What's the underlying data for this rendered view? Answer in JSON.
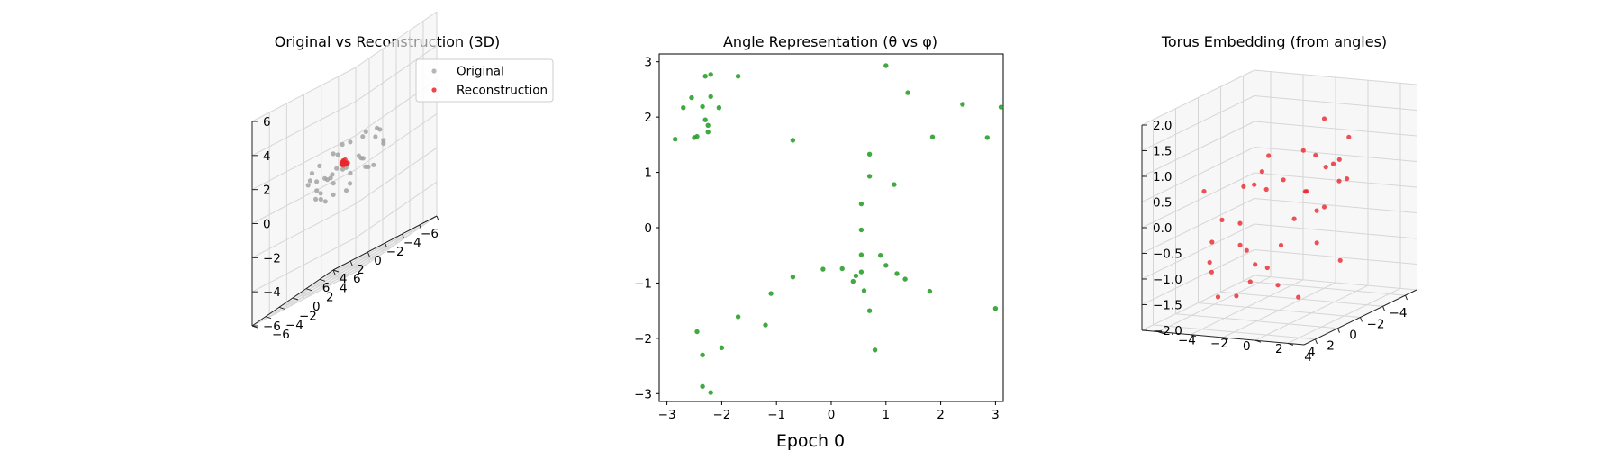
{
  "figure": {
    "suptitle": "Epoch 0"
  },
  "chart_data": [
    {
      "type": "scatter",
      "projection": "3d",
      "title": "Original vs Reconstruction (3D)",
      "xlim": [
        -6,
        6
      ],
      "ylim": [
        -6,
        6
      ],
      "zlim": [
        -6,
        6
      ],
      "xticks": [
        -6,
        -4,
        -2,
        0,
        2,
        4,
        6
      ],
      "yticks": [
        -6,
        -4,
        -2,
        0,
        2,
        4,
        6
      ],
      "zticks": [
        -6,
        -4,
        -2,
        0,
        2,
        4,
        6
      ],
      "xtick_labels": [
        "−6",
        "−4",
        "−2",
        "0",
        "2",
        "4",
        "6"
      ],
      "ytick_labels": [
        "−6",
        "−4",
        "−2",
        "0",
        "2",
        "4",
        "6"
      ],
      "ztick_labels": [
        "−6",
        "−4",
        "−2",
        "0",
        "2",
        "4",
        "6"
      ],
      "grid": true,
      "legend": {
        "placement": "top-right",
        "entries": [
          "Original",
          "Reconstruction"
        ]
      },
      "series": [
        {
          "name": "Original",
          "color": "#9e9e9e",
          "points": [
            [
              -3.2,
              0.5,
              0.9
            ],
            [
              -2.6,
              -1.2,
              0.4
            ],
            [
              -1.9,
              -2.7,
              0.2
            ],
            [
              -0.6,
              -3.3,
              0.1
            ],
            [
              0.8,
              -3.1,
              0.3
            ],
            [
              2.1,
              -2.4,
              0.5
            ],
            [
              2.9,
              -1.1,
              0.8
            ],
            [
              3.2,
              0.4,
              0.9
            ],
            [
              2.7,
              1.8,
              1.1
            ],
            [
              1.6,
              2.9,
              1.2
            ],
            [
              0.1,
              3.3,
              1.3
            ],
            [
              -1.5,
              2.9,
              1.2
            ],
            [
              -2.7,
              1.8,
              1.1
            ],
            [
              -3.0,
              -0.3,
              -0.6
            ],
            [
              -2.2,
              -2.0,
              -0.9
            ],
            [
              -0.9,
              -2.8,
              -1.0
            ],
            [
              0.7,
              -2.6,
              -0.9
            ],
            [
              2.0,
              -1.7,
              -0.8
            ],
            [
              2.6,
              -0.2,
              -0.7
            ],
            [
              2.3,
              1.3,
              -0.6
            ],
            [
              1.2,
              2.4,
              -0.6
            ],
            [
              -0.4,
              2.6,
              -0.7
            ],
            [
              -1.8,
              2.0,
              -0.8
            ],
            [
              -1.7,
              0.6,
              0.0
            ],
            [
              -1.2,
              -1.3,
              0.1
            ],
            [
              0.2,
              -1.8,
              0.0
            ],
            [
              1.5,
              -1.0,
              0.1
            ],
            [
              1.8,
              0.5,
              0.0
            ],
            [
              0.9,
              1.6,
              0.1
            ],
            [
              -0.6,
              1.7,
              0.0
            ],
            [
              -3.5,
              1.3,
              0.2
            ],
            [
              3.5,
              -0.9,
              0.2
            ],
            [
              -2.9,
              -1.0,
              1.4
            ],
            [
              1.0,
              0.3,
              1.0
            ],
            [
              -0.6,
              -0.5,
              -1.3
            ],
            [
              2.8,
              2.4,
              0.1
            ],
            [
              -2.4,
              2.7,
              0.3
            ],
            [
              0.4,
              -3.6,
              -0.2
            ],
            [
              3.0,
              1.0,
              -1.4
            ],
            [
              -1.0,
              -1.6,
              1.6
            ]
          ]
        },
        {
          "name": "Reconstruction",
          "color": "#e8262a",
          "points": [
            [
              -0.3,
              -0.2,
              0.3
            ],
            [
              -0.1,
              -0.1,
              0.35
            ],
            [
              0.1,
              0.0,
              0.4
            ],
            [
              0.2,
              0.1,
              0.45
            ],
            [
              0.0,
              -0.2,
              0.25
            ],
            [
              -0.2,
              0.0,
              0.2
            ],
            [
              0.3,
              0.2,
              0.5
            ],
            [
              0.1,
              0.2,
              0.35
            ],
            [
              -0.1,
              0.1,
              0.3
            ],
            [
              0.2,
              -0.1,
              0.4
            ],
            [
              -0.3,
              0.1,
              0.25
            ],
            [
              0.0,
              0.1,
              0.5
            ],
            [
              0.4,
              0.1,
              0.45
            ],
            [
              -0.2,
              -0.3,
              0.3
            ],
            [
              0.1,
              -0.3,
              0.35
            ]
          ]
        }
      ]
    },
    {
      "type": "scatter",
      "title": "Angle Representation (θ vs φ)",
      "xlim": [
        -3.1416,
        3.1416
      ],
      "ylim": [
        -3.1416,
        3.1416
      ],
      "xticks": [
        -3,
        -2,
        -1,
        0,
        1,
        2,
        3
      ],
      "yticks": [
        -3,
        -2,
        -1,
        0,
        1,
        2,
        3
      ],
      "xtick_labels": [
        "−3",
        "−2",
        "−1",
        "0",
        "1",
        "2",
        "3"
      ],
      "ytick_labels": [
        "−3",
        "−2",
        "−1",
        "0",
        "1",
        "2",
        "3"
      ],
      "grid": false,
      "series": [
        {
          "color": "#2ca02c",
          "points": [
            [
              -2.2,
              2.77
            ],
            [
              -2.3,
              2.74
            ],
            [
              -1.7,
              2.74
            ],
            [
              -2.55,
              2.35
            ],
            [
              -2.2,
              2.37
            ],
            [
              -2.7,
              2.17
            ],
            [
              -2.35,
              2.19
            ],
            [
              -2.05,
              2.17
            ],
            [
              -2.3,
              1.95
            ],
            [
              -2.25,
              1.85
            ],
            [
              -2.25,
              1.73
            ],
            [
              -2.45,
              1.65
            ],
            [
              -2.5,
              1.63
            ],
            [
              -2.85,
              1.6
            ],
            [
              -0.7,
              1.58
            ],
            [
              1.0,
              2.93
            ],
            [
              1.4,
              2.44
            ],
            [
              2.4,
              2.23
            ],
            [
              3.1,
              2.18
            ],
            [
              1.85,
              1.64
            ],
            [
              2.85,
              1.63
            ],
            [
              0.7,
              1.33
            ],
            [
              0.7,
              0.93
            ],
            [
              1.15,
              0.78
            ],
            [
              0.55,
              0.43
            ],
            [
              0.55,
              -0.04
            ],
            [
              0.55,
              -0.49
            ],
            [
              0.9,
              -0.5
            ],
            [
              1.0,
              -0.68
            ],
            [
              0.55,
              -0.8
            ],
            [
              0.2,
              -0.74
            ],
            [
              -0.15,
              -0.75
            ],
            [
              0.45,
              -0.87
            ],
            [
              0.4,
              -0.97
            ],
            [
              1.2,
              -0.83
            ],
            [
              1.35,
              -0.93
            ],
            [
              -0.7,
              -0.89
            ],
            [
              0.6,
              -1.14
            ],
            [
              1.8,
              -1.15
            ],
            [
              -1.1,
              -1.19
            ],
            [
              0.7,
              -1.5
            ],
            [
              3.0,
              -1.46
            ],
            [
              -1.7,
              -1.61
            ],
            [
              -1.2,
              -1.76
            ],
            [
              0.8,
              -2.21
            ],
            [
              -2.45,
              -1.88
            ],
            [
              -2.0,
              -2.17
            ],
            [
              -2.35,
              -2.3
            ],
            [
              -2.35,
              -2.87
            ],
            [
              -2.2,
              -2.98
            ]
          ]
        }
      ]
    },
    {
      "type": "scatter",
      "projection": "3d",
      "title": "Torus Embedding (from angles)",
      "xlim": [
        -5,
        5
      ],
      "ylim": [
        -5,
        5
      ],
      "zlim": [
        -2,
        2
      ],
      "xticks": [
        -4,
        -2,
        0,
        2,
        4
      ],
      "yticks": [
        -4,
        -2,
        0,
        2,
        4
      ],
      "zticks": [
        -2,
        -1.5,
        -1,
        -0.5,
        0,
        0.5,
        1,
        1.5,
        2
      ],
      "xtick_labels": [
        "−4",
        "−2",
        "0",
        "2",
        "4"
      ],
      "ytick_labels": [
        "−4",
        "−2",
        "0",
        "2",
        "4"
      ],
      "ztick_labels": [
        "−2.0",
        "−1.5",
        "−1.0",
        "−0.5",
        "0.0",
        "0.5",
        "1.0",
        "1.5",
        "2.0"
      ],
      "grid": true,
      "series": [
        {
          "color": "#e8262a",
          "points": [
            [
              -3.8,
              -0.4,
              0.6
            ],
            [
              -3.7,
              0.3,
              0.4
            ],
            [
              -3.5,
              0.9,
              0.5
            ],
            [
              -3.3,
              1.4,
              0.2
            ],
            [
              -3.6,
              -0.9,
              -0.1
            ],
            [
              -3.2,
              -1.3,
              -0.6
            ],
            [
              -2.9,
              -1.9,
              -1.1
            ],
            [
              -2.4,
              -2.4,
              -1.5
            ],
            [
              -1.6,
              -2.9,
              -1.7
            ],
            [
              -0.8,
              -3.2,
              -1.9
            ],
            [
              0.4,
              -3.5,
              -1.8
            ],
            [
              1.4,
              -3.2,
              -1.2
            ],
            [
              2.3,
              -2.7,
              -0.9
            ],
            [
              3.1,
              -2.0,
              -0.4
            ],
            [
              3.5,
              -1.1,
              0.1
            ],
            [
              3.6,
              0.3,
              0.8
            ],
            [
              3.4,
              1.3,
              1.1
            ],
            [
              2.8,
              2.2,
              0.9
            ],
            [
              1.9,
              3.0,
              0.6
            ],
            [
              0.9,
              3.4,
              0.2
            ],
            [
              -0.3,
              3.5,
              1.0
            ],
            [
              -1.4,
              3.2,
              0.5
            ],
            [
              -2.3,
              2.7,
              1.2
            ],
            [
              -1.5,
              -1.7,
              0.8
            ],
            [
              -0.8,
              -2.1,
              0.3
            ],
            [
              0.6,
              -2.0,
              -0.3
            ],
            [
              1.6,
              -1.3,
              -0.6
            ],
            [
              2.0,
              -0.1,
              -0.9
            ],
            [
              1.7,
              1.1,
              -1.3
            ],
            [
              0.9,
              1.8,
              -1.6
            ],
            [
              -0.6,
              1.9,
              -0.7
            ],
            [
              -1.6,
              1.2,
              -0.2
            ],
            [
              -2.0,
              0.1,
              0.9
            ],
            [
              -4.0,
              0.0,
              1.3
            ],
            [
              3.9,
              0.7,
              -0.4
            ],
            [
              2.5,
              -2.9,
              0.5
            ],
            [
              -2.6,
              -2.6,
              0.0
            ],
            [
              0.2,
              3.9,
              -0.9
            ]
          ]
        }
      ]
    }
  ]
}
